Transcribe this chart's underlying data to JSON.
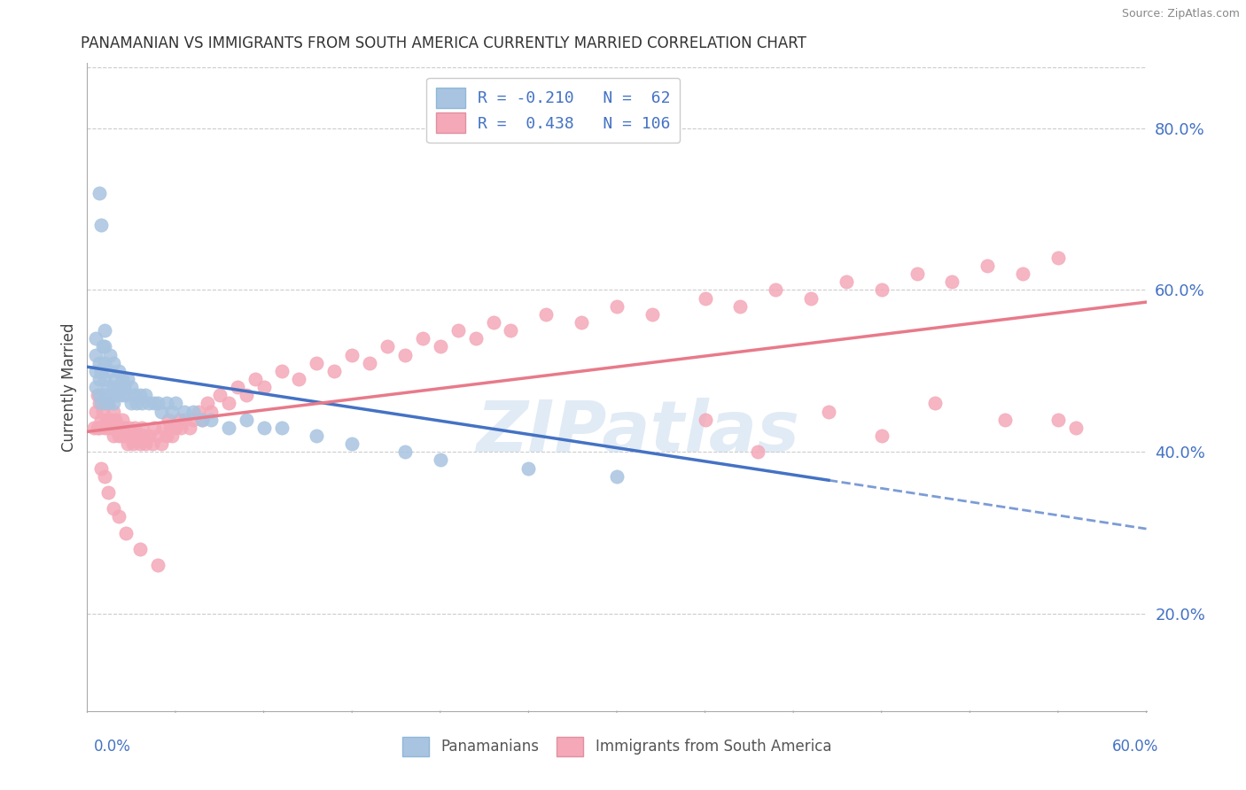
{
  "title": "PANAMANIAN VS IMMIGRANTS FROM SOUTH AMERICA CURRENTLY MARRIED CORRELATION CHART",
  "source": "Source: ZipAtlas.com",
  "ylabel": "Currently Married",
  "xmin": 0.0,
  "xmax": 0.6,
  "ymin": 0.08,
  "ymax": 0.88,
  "yticks": [
    0.2,
    0.4,
    0.6,
    0.8
  ],
  "ytick_labels": [
    "20.0%",
    "40.0%",
    "60.0%",
    "80.0%"
  ],
  "xtick_left_label": "0.0%",
  "xtick_right_label": "60.0%",
  "blue_R": -0.21,
  "blue_N": 62,
  "pink_R": 0.438,
  "pink_N": 106,
  "blue_dot_color": "#a8c4e0",
  "pink_dot_color": "#f4a8b8",
  "blue_line_color": "#4472c4",
  "pink_line_color": "#e87a8a",
  "legend_blue_label": "Panamanians",
  "legend_pink_label": "Immigrants from South America",
  "watermark": "ZIPatlas",
  "blue_line_x0": 0.0,
  "blue_line_y0": 0.505,
  "blue_line_x1": 0.6,
  "blue_line_y1": 0.305,
  "blue_line_solid_end": 0.42,
  "pink_line_x0": 0.0,
  "pink_line_y0": 0.425,
  "pink_line_x1": 0.6,
  "pink_line_y1": 0.585,
  "blue_scatter_x": [
    0.005,
    0.005,
    0.005,
    0.005,
    0.007,
    0.007,
    0.007,
    0.008,
    0.008,
    0.009,
    0.01,
    0.01,
    0.01,
    0.01,
    0.01,
    0.012,
    0.012,
    0.013,
    0.013,
    0.014,
    0.015,
    0.015,
    0.015,
    0.016,
    0.017,
    0.018,
    0.019,
    0.02,
    0.02,
    0.021,
    0.022,
    0.023,
    0.025,
    0.025,
    0.027,
    0.028,
    0.03,
    0.031,
    0.033,
    0.035,
    0.038,
    0.04,
    0.042,
    0.045,
    0.048,
    0.05,
    0.055,
    0.06,
    0.065,
    0.07,
    0.08,
    0.09,
    0.1,
    0.11,
    0.13,
    0.15,
    0.18,
    0.2,
    0.25,
    0.3,
    0.007,
    0.008
  ],
  "blue_scatter_y": [
    0.48,
    0.5,
    0.52,
    0.54,
    0.47,
    0.49,
    0.51,
    0.46,
    0.5,
    0.53,
    0.47,
    0.49,
    0.51,
    0.53,
    0.55,
    0.46,
    0.48,
    0.5,
    0.52,
    0.47,
    0.46,
    0.48,
    0.51,
    0.49,
    0.47,
    0.5,
    0.48,
    0.47,
    0.49,
    0.48,
    0.47,
    0.49,
    0.46,
    0.48,
    0.47,
    0.46,
    0.47,
    0.46,
    0.47,
    0.46,
    0.46,
    0.46,
    0.45,
    0.46,
    0.45,
    0.46,
    0.45,
    0.45,
    0.44,
    0.44,
    0.43,
    0.44,
    0.43,
    0.43,
    0.42,
    0.41,
    0.4,
    0.39,
    0.38,
    0.37,
    0.72,
    0.68
  ],
  "pink_scatter_x": [
    0.004,
    0.005,
    0.006,
    0.006,
    0.007,
    0.007,
    0.008,
    0.009,
    0.01,
    0.01,
    0.011,
    0.012,
    0.012,
    0.013,
    0.014,
    0.015,
    0.015,
    0.016,
    0.017,
    0.018,
    0.019,
    0.02,
    0.02,
    0.021,
    0.022,
    0.023,
    0.024,
    0.025,
    0.026,
    0.027,
    0.028,
    0.03,
    0.031,
    0.032,
    0.033,
    0.035,
    0.037,
    0.038,
    0.04,
    0.042,
    0.043,
    0.045,
    0.046,
    0.047,
    0.048,
    0.05,
    0.052,
    0.053,
    0.055,
    0.058,
    0.06,
    0.063,
    0.065,
    0.068,
    0.07,
    0.075,
    0.08,
    0.085,
    0.09,
    0.095,
    0.1,
    0.11,
    0.12,
    0.13,
    0.14,
    0.15,
    0.16,
    0.17,
    0.18,
    0.19,
    0.2,
    0.21,
    0.22,
    0.23,
    0.24,
    0.26,
    0.28,
    0.3,
    0.32,
    0.35,
    0.37,
    0.39,
    0.41,
    0.43,
    0.45,
    0.47,
    0.49,
    0.51,
    0.53,
    0.55,
    0.008,
    0.01,
    0.012,
    0.015,
    0.018,
    0.022,
    0.03,
    0.04,
    0.35,
    0.55,
    0.45,
    0.38,
    0.42,
    0.48,
    0.52,
    0.56
  ],
  "pink_scatter_y": [
    0.43,
    0.45,
    0.43,
    0.47,
    0.43,
    0.46,
    0.44,
    0.45,
    0.43,
    0.46,
    0.44,
    0.43,
    0.46,
    0.44,
    0.43,
    0.42,
    0.45,
    0.44,
    0.43,
    0.42,
    0.43,
    0.42,
    0.44,
    0.43,
    0.42,
    0.41,
    0.43,
    0.42,
    0.41,
    0.43,
    0.42,
    0.41,
    0.43,
    0.42,
    0.41,
    0.42,
    0.41,
    0.43,
    0.42,
    0.41,
    0.43,
    0.42,
    0.44,
    0.43,
    0.42,
    0.43,
    0.44,
    0.43,
    0.44,
    0.43,
    0.44,
    0.45,
    0.44,
    0.46,
    0.45,
    0.47,
    0.46,
    0.48,
    0.47,
    0.49,
    0.48,
    0.5,
    0.49,
    0.51,
    0.5,
    0.52,
    0.51,
    0.53,
    0.52,
    0.54,
    0.53,
    0.55,
    0.54,
    0.56,
    0.55,
    0.57,
    0.56,
    0.58,
    0.57,
    0.59,
    0.58,
    0.6,
    0.59,
    0.61,
    0.6,
    0.62,
    0.61,
    0.63,
    0.62,
    0.64,
    0.38,
    0.37,
    0.35,
    0.33,
    0.32,
    0.3,
    0.28,
    0.26,
    0.44,
    0.44,
    0.42,
    0.4,
    0.45,
    0.46,
    0.44,
    0.43
  ]
}
